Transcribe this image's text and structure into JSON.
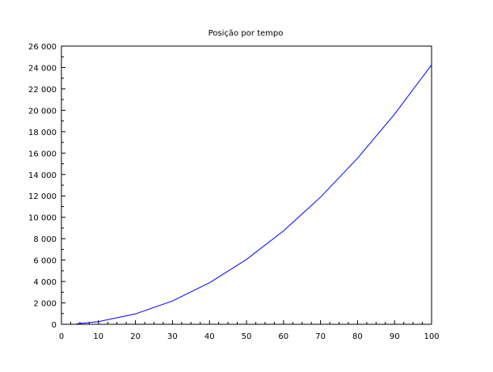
{
  "chart_data": {
    "type": "line",
    "title": "Posição por tempo",
    "xlabel": "",
    "ylabel": "",
    "xlim": [
      0,
      100
    ],
    "ylim": [
      0,
      26000
    ],
    "x_ticks": [
      0,
      10,
      20,
      30,
      40,
      50,
      60,
      70,
      80,
      90,
      100
    ],
    "y_ticks": [
      0,
      2000,
      4000,
      6000,
      8000,
      10000,
      12000,
      14000,
      16000,
      18000,
      20000,
      22000,
      24000,
      26000
    ],
    "x_tick_labels": [
      "0",
      "10",
      "20",
      "30",
      "40",
      "50",
      "60",
      "70",
      "80",
      "90",
      "100"
    ],
    "y_tick_labels": [
      "0",
      "2 000",
      "4 000",
      "6 000",
      "8 000",
      "10 000",
      "12 000",
      "14 000",
      "16 000",
      "18 000",
      "20 000",
      "22 000",
      "24 000",
      "26 000"
    ],
    "grid": false,
    "series": [
      {
        "color": "#0000ff",
        "x": [
          4,
          10,
          20,
          30,
          40,
          50,
          60,
          70,
          80,
          90,
          100
        ],
        "y": [
          40,
          245,
          970,
          2180,
          3880,
          6060,
          8730,
          11880,
          15520,
          19640,
          24250
        ]
      }
    ]
  }
}
